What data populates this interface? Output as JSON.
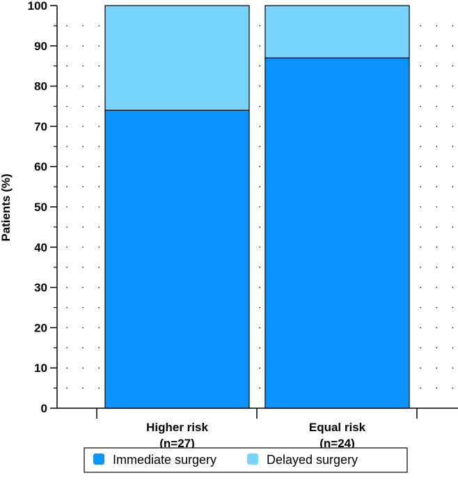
{
  "chart_data": {
    "type": "bar",
    "stacked": true,
    "categories": [
      "Higher risk",
      "Equal risk"
    ],
    "category_sublabels": [
      "(n=27)",
      "(n=24)"
    ],
    "series": [
      {
        "name": "Immediate surgery",
        "values": [
          74,
          87
        ],
        "color": "#0a93fb"
      },
      {
        "name": "Delayed surgery",
        "values": [
          26,
          13
        ],
        "color": "#79d4fd"
      }
    ],
    "ylabel": "Patients (%)",
    "ylim": [
      0,
      100
    ],
    "yticks": [
      0,
      10,
      20,
      30,
      40,
      50,
      60,
      70,
      80,
      90,
      100
    ],
    "grid": "dotted",
    "legend_position": "bottom"
  }
}
